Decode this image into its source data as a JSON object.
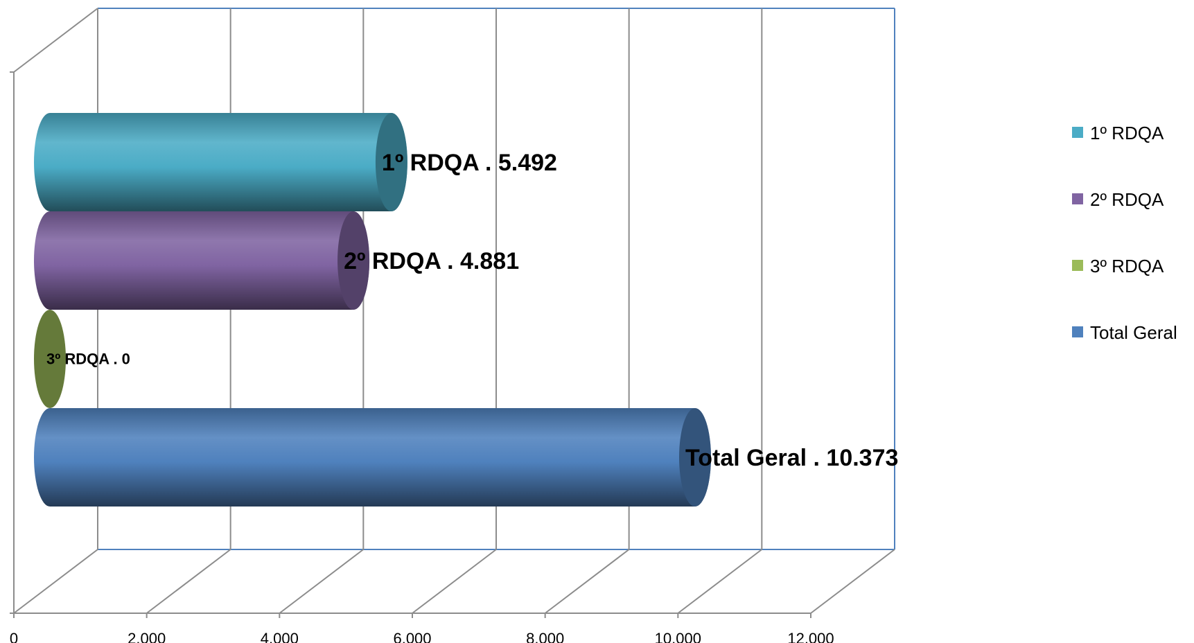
{
  "chart_data": {
    "type": "bar",
    "orientation": "horizontal",
    "style": "3d-cylinder",
    "title": "",
    "xlabel": "",
    "ylabel": "",
    "xlim": [
      0,
      12000
    ],
    "x_ticks": [
      {
        "value": 0,
        "label": "0"
      },
      {
        "value": 2000,
        "label": "2.000"
      },
      {
        "value": 4000,
        "label": "4.000"
      },
      {
        "value": 6000,
        "label": "6.000"
      },
      {
        "value": 8000,
        "label": "8.000"
      },
      {
        "value": 10000,
        "label": "10.000"
      },
      {
        "value": 12000,
        "label": "12.000"
      }
    ],
    "grid": true,
    "legend_position": "right",
    "series": [
      {
        "name": "1º RDQA",
        "value": 5492,
        "data_label": "1º RDQA . 5.492",
        "color": "#4BACC6"
      },
      {
        "name": "2º RDQA",
        "value": 4881,
        "data_label": "2º RDQA . 4.881",
        "color": "#8064A2"
      },
      {
        "name": "3º RDQA",
        "value": 0,
        "data_label": "3º RDQA . 0",
        "color": "#9BBB59"
      },
      {
        "name": "Total Geral",
        "value": 10373,
        "data_label": "Total Geral . 10.373",
        "color": "#4F81BD"
      }
    ]
  }
}
